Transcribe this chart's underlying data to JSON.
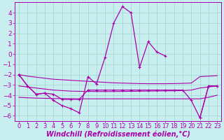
{
  "title": "",
  "xlabel": "Windchill (Refroidissement éolien,°C)",
  "background_color": "#c8eef0",
  "grid_color": "#9fd4cc",
  "line_color": "#aa00aa",
  "x_hours": [
    0,
    1,
    2,
    3,
    4,
    5,
    6,
    7,
    8,
    9,
    10,
    11,
    12,
    13,
    14,
    15,
    16,
    17,
    18,
    19,
    20,
    21,
    22,
    23
  ],
  "main_line": [
    -2.0,
    -3.1,
    -3.9,
    -3.8,
    -4.5,
    -5.0,
    -5.3,
    -5.7,
    -2.2,
    -2.9,
    -0.3,
    3.0,
    4.6,
    4.0,
    -1.3,
    1.2,
    0.2,
    -0.2,
    null,
    null,
    null,
    -6.2,
    -3.1,
    -3.1
  ],
  "line2": [
    -2.0,
    -3.1,
    -3.9,
    -3.8,
    -3.9,
    -4.4,
    -4.4,
    -4.4,
    -3.5,
    -3.5,
    -3.5,
    -3.5,
    -3.5,
    -3.5,
    -3.5,
    -3.5,
    -3.5,
    -3.5,
    -3.5,
    -3.5,
    -4.5,
    -6.2,
    -3.1,
    -3.1
  ],
  "trend1": [
    -2.0,
    -2.15,
    -2.25,
    -2.35,
    -2.45,
    -2.5,
    -2.55,
    -2.6,
    -2.65,
    -2.7,
    -2.75,
    -2.8,
    -2.82,
    -2.85,
    -2.87,
    -2.88,
    -2.88,
    -2.88,
    -2.87,
    -2.85,
    -2.82,
    -2.2,
    -2.15,
    -2.1
  ],
  "trend2": [
    -3.1,
    -3.2,
    -3.3,
    -3.4,
    -3.5,
    -3.55,
    -3.6,
    -3.62,
    -3.63,
    -3.64,
    -3.64,
    -3.64,
    -3.63,
    -3.62,
    -3.61,
    -3.6,
    -3.59,
    -3.58,
    -3.57,
    -3.55,
    -3.5,
    -3.3,
    -3.2,
    -3.1
  ],
  "trend3": [
    -4.2,
    -4.25,
    -4.28,
    -4.3,
    -4.32,
    -4.33,
    -4.34,
    -4.35,
    -4.35,
    -4.35,
    -4.35,
    -4.35,
    -4.35,
    -4.35,
    -4.35,
    -4.35,
    -4.35,
    -4.35,
    -4.35,
    -4.35,
    -4.35,
    -4.35,
    -4.2,
    -4.0
  ],
  "ylim": [
    -6.5,
    5.0
  ],
  "yticks": [
    -6,
    -5,
    -4,
    -3,
    -2,
    -1,
    0,
    1,
    2,
    3,
    4
  ],
  "tick_fontsize": 6.5,
  "label_fontsize": 7.0
}
